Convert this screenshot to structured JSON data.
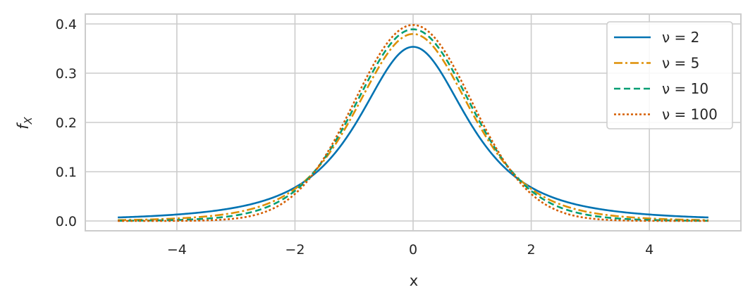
{
  "chart_data": {
    "type": "line",
    "xlabel": "x",
    "ylabel": "f_X",
    "xlim": [
      -5.55,
      5.55
    ],
    "ylim": [
      -0.02,
      0.42
    ],
    "xticks": [
      -4,
      -2,
      0,
      2,
      4
    ],
    "xtick_labels": [
      "−4",
      "−2",
      "0",
      "2",
      "4"
    ],
    "yticks": [
      0.0,
      0.1,
      0.2,
      0.3,
      0.4
    ],
    "ytick_labels": [
      "0.0",
      "0.1",
      "0.2",
      "0.3",
      "0.4"
    ],
    "grid": true,
    "legend_position": "top-right",
    "x_range": [
      -5,
      5
    ],
    "series": [
      {
        "name": "ν = 2",
        "nu": 2,
        "color": "#0173b2",
        "style": "solid"
      },
      {
        "name": "ν = 5",
        "nu": 5,
        "color": "#de8f05",
        "style": "dashdot"
      },
      {
        "name": "ν = 10",
        "nu": 10,
        "color": "#029e73",
        "style": "dashed"
      },
      {
        "name": "ν = 100",
        "nu": 100,
        "color": "#d55e00",
        "style": "dotted"
      }
    ]
  }
}
